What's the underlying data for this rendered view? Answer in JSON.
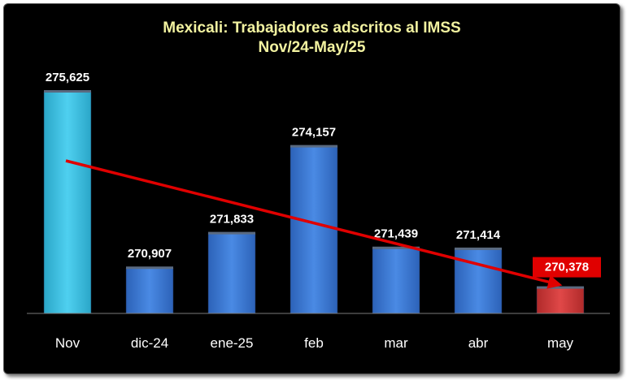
{
  "chart_data": {
    "type": "bar",
    "title": "Mexicali: Trabajadores adscritos al IMSS",
    "subtitle": "Nov/24-May/25",
    "categories": [
      "Nov",
      "dic-24",
      "ene-25",
      "feb",
      "mar",
      "abr",
      "may"
    ],
    "values": [
      275625,
      270907,
      271833,
      274157,
      271439,
      271414,
      270378
    ],
    "value_labels": [
      "275,625",
      "270,907",
      "271,833",
      "274,157",
      "271,439",
      "271,414",
      "270,378"
    ],
    "bar_colors": [
      "#3ec3e6",
      "#3f7fd8",
      "#3f7fd8",
      "#3f7fd8",
      "#3f7fd8",
      "#3f7fd8",
      "#d63a3a"
    ],
    "highlight": {
      "category": "may",
      "label_bg": "#e00000",
      "label_color": "#ffffff"
    },
    "trend_line": {
      "color": "#e00000",
      "from": "Nov",
      "to": "may",
      "arrow": true
    },
    "ylim": [
      270000,
      275625
    ],
    "grid": false,
    "legend": "none",
    "colors": {
      "background": "#000000",
      "title": "#f2f2a0",
      "labels": "#ffffff",
      "axis": "#808080"
    }
  }
}
